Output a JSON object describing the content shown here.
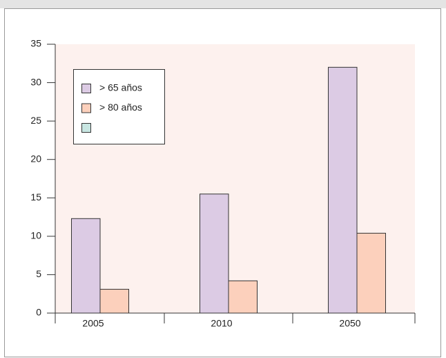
{
  "chart_data": {
    "type": "bar",
    "categories": [
      "2005",
      "2010",
      "2050"
    ],
    "series": [
      {
        "name": "> 65 años",
        "color": "#dccbe4",
        "values": [
          12.3,
          15.5,
          32.0
        ]
      },
      {
        "name": "> 80 años",
        "color": "#fcd0bc",
        "values": [
          3.1,
          4.2,
          10.4
        ]
      },
      {
        "name": null,
        "color": "#c8e6e2",
        "values": [
          null,
          null,
          null
        ]
      }
    ],
    "ylim": [
      0,
      35
    ],
    "yticks": [
      0,
      5,
      10,
      15,
      20,
      25,
      30,
      35
    ]
  }
}
